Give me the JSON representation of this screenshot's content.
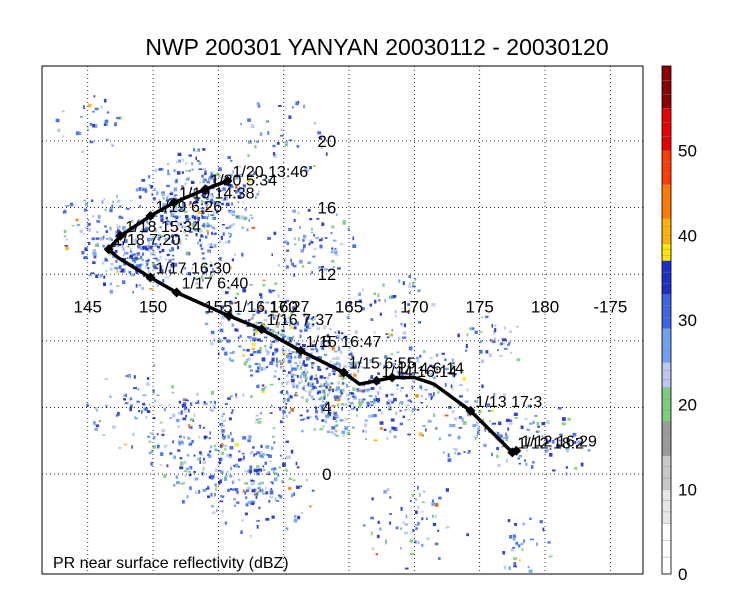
{
  "title": "NWP 200301 YANYAN 20030112 - 20030120",
  "caption": "PR near surface reflectivity (dBZ)",
  "map": {
    "lon_range": [
      141.5,
      187.5
    ],
    "lat_range": [
      -6.0,
      24.5
    ],
    "lon_ticks": [
      {
        "value": 145,
        "label": "145"
      },
      {
        "value": 150,
        "label": "150"
      },
      {
        "value": 155,
        "label": "155"
      },
      {
        "value": 160,
        "label": "160"
      },
      {
        "value": 165,
        "label": "165"
      },
      {
        "value": 170,
        "label": "170"
      },
      {
        "value": 175,
        "label": "175"
      },
      {
        "value": 180,
        "label": "180"
      },
      {
        "value": 185,
        "label": "-175"
      }
    ],
    "lat_ticks": [
      {
        "value": 0,
        "label": "0"
      },
      {
        "value": 4,
        "label": "4"
      },
      {
        "value": 8,
        "label": "8"
      },
      {
        "value": 12,
        "label": "12"
      },
      {
        "value": 16,
        "label": "16"
      },
      {
        "value": 20,
        "label": "20"
      }
    ],
    "track_color": "#000000",
    "track": [
      {
        "lon": 177.8,
        "lat": 1.4
      },
      {
        "lon": 177.5,
        "lat": 1.3
      },
      {
        "lon": 174.3,
        "lat": 3.8
      },
      {
        "lon": 171.5,
        "lat": 5.4
      },
      {
        "lon": 170.0,
        "lat": 5.8
      },
      {
        "lon": 168.3,
        "lat": 5.8
      },
      {
        "lon": 167.1,
        "lat": 5.6
      },
      {
        "lon": 165.8,
        "lat": 5.4
      },
      {
        "lon": 164.6,
        "lat": 6.1
      },
      {
        "lon": 161.3,
        "lat": 7.4
      },
      {
        "lon": 158.3,
        "lat": 8.7
      },
      {
        "lon": 155.8,
        "lat": 9.5
      },
      {
        "lon": 151.8,
        "lat": 10.9
      },
      {
        "lon": 149.8,
        "lat": 11.8
      },
      {
        "lon": 147.3,
        "lat": 13.0
      },
      {
        "lon": 146.6,
        "lat": 13.5
      },
      {
        "lon": 147.5,
        "lat": 14.3
      },
      {
        "lon": 149.8,
        "lat": 15.5
      },
      {
        "lon": 151.6,
        "lat": 16.3
      },
      {
        "lon": 154.0,
        "lat": 17.1
      },
      {
        "lon": 155.7,
        "lat": 17.6
      }
    ],
    "fixes": [
      {
        "lon": 177.8,
        "lat": 1.4,
        "label": "1/12 16:29"
      },
      {
        "lon": 177.5,
        "lat": 1.3,
        "label": "1/12 18:2"
      },
      {
        "lon": 174.3,
        "lat": 3.8,
        "label": "1/13 17:3"
      },
      {
        "lon": 168.3,
        "lat": 5.8,
        "label": "1/14 6:14"
      },
      {
        "lon": 167.1,
        "lat": 5.6,
        "label": "1/14 16:14"
      },
      {
        "lon": 164.6,
        "lat": 6.1,
        "label": "1/15 6:55"
      },
      {
        "lon": 161.3,
        "lat": 7.4,
        "label": "1/15 16:47"
      },
      {
        "lon": 158.3,
        "lat": 8.7,
        "label": "1/16 7:37"
      },
      {
        "lon": 155.8,
        "lat": 9.5,
        "label": "1/16 17:27"
      },
      {
        "lon": 151.8,
        "lat": 10.9,
        "label": "1/17 6:40"
      },
      {
        "lon": 149.8,
        "lat": 11.8,
        "label": "1/17 16:30"
      },
      {
        "lon": 146.6,
        "lat": 13.5,
        "label": "1/18 7:20"
      },
      {
        "lon": 147.5,
        "lat": 14.3,
        "label": "1/18 15:34"
      },
      {
        "lon": 149.8,
        "lat": 15.5,
        "label": "1/19 6:26"
      },
      {
        "lon": 151.6,
        "lat": 16.3,
        "label": "1/19 14:38"
      },
      {
        "lon": 154.0,
        "lat": 17.1,
        "label": "1/20 5:34"
      },
      {
        "lon": 155.7,
        "lat": 17.6,
        "label": "1/20 13:46"
      }
    ]
  },
  "colorbar": {
    "min": 0,
    "max": 60,
    "ticks": [
      {
        "value": 0,
        "label": "0"
      },
      {
        "value": 10,
        "label": "10"
      },
      {
        "value": 20,
        "label": "20"
      },
      {
        "value": 30,
        "label": "30"
      },
      {
        "value": 40,
        "label": "40"
      },
      {
        "value": 50,
        "label": "50"
      }
    ],
    "stops": [
      {
        "from": 0,
        "to": 6,
        "color": "#ffffff"
      },
      {
        "from": 6,
        "to": 10,
        "color": "#e6e6e6"
      },
      {
        "from": 10,
        "to": 14,
        "color": "#c8c8c8"
      },
      {
        "from": 14,
        "to": 18,
        "color": "#9a9a9a"
      },
      {
        "from": 18,
        "to": 22,
        "color": "#7ccd7c"
      },
      {
        "from": 22,
        "to": 25,
        "color": "#b8c8f0"
      },
      {
        "from": 25,
        "to": 29,
        "color": "#6f9ff0"
      },
      {
        "from": 29,
        "to": 33,
        "color": "#3c64e6"
      },
      {
        "from": 33,
        "to": 37,
        "color": "#1e2ec8"
      },
      {
        "from": 37,
        "to": 39,
        "color": "#ffe600"
      },
      {
        "from": 39,
        "to": 42,
        "color": "#ffb400"
      },
      {
        "from": 42,
        "to": 46,
        "color": "#ff7800"
      },
      {
        "from": 46,
        "to": 50,
        "color": "#ff3c00"
      },
      {
        "from": 50,
        "to": 55,
        "color": "#e60000"
      },
      {
        "from": 55,
        "to": 60,
        "color": "#8c0000"
      }
    ]
  }
}
